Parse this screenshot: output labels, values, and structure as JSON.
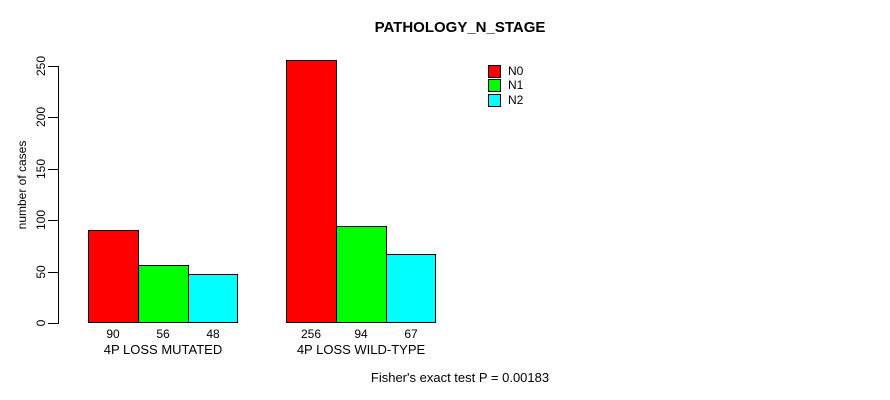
{
  "title": "PATHOLOGY_N_STAGE",
  "y_axis_label": "number of cases",
  "footer_note": "Fisher's exact test P = 0.00183",
  "background_color": "#FFFFFF",
  "axis_color": "#000000",
  "chart_data": {
    "type": "bar",
    "title": "PATHOLOGY_N_STAGE",
    "ylabel": "number of cases",
    "xlabel": "",
    "categories": [
      "4P LOSS MUTATED",
      "4P LOSS WILD-TYPE"
    ],
    "series": [
      {
        "name": "N0",
        "color": "#FF0000",
        "values": [
          90,
          256
        ]
      },
      {
        "name": "N1",
        "color": "#00FF00",
        "values": [
          56,
          94
        ]
      },
      {
        "name": "N2",
        "color": "#00FFFF",
        "values": [
          48,
          67
        ]
      }
    ],
    "bar_value_labels": [
      [
        "90",
        "56",
        "48"
      ],
      [
        "256",
        "94",
        "67"
      ]
    ],
    "yticks": [
      0,
      50,
      100,
      150,
      200,
      250
    ],
    "ylim": [
      0,
      260
    ],
    "grid": false,
    "legend": {
      "position": "inside-top-right",
      "entries": [
        {
          "label": "N0",
          "color": "#FF0000"
        },
        {
          "label": "N1",
          "color": "#00FF00"
        },
        {
          "label": "N2",
          "color": "#00FFFF"
        }
      ]
    },
    "annotation": "Fisher's exact test P = 0.00183"
  }
}
